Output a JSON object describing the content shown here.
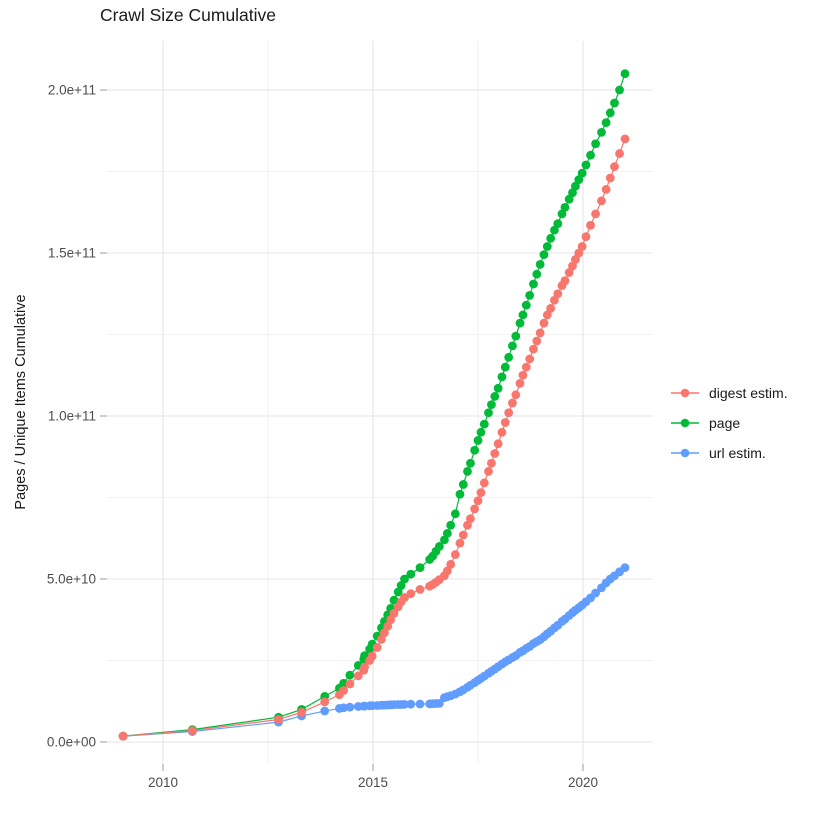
{
  "title": "Crawl Size Cumulative",
  "x_axis": {
    "tick_labels": [
      "2010",
      "2015",
      "2020"
    ],
    "tick_values": [
      2010,
      2015,
      2020
    ],
    "minor_values": [
      2012.5,
      2017.5
    ]
  },
  "y_axis": {
    "title": "Pages / Unique Items Cumulative",
    "tick_labels": [
      "0.0e+00",
      "5.0e+10",
      "1.0e+11",
      "1.5e+11",
      "2.0e+11"
    ],
    "tick_values_billions": [
      0,
      50,
      100,
      150,
      200
    ],
    "minor_values_billions": [
      25,
      75,
      125,
      175
    ]
  },
  "legend": {
    "items": [
      {
        "label": "digest estim.",
        "color": "#F8766D"
      },
      {
        "label": "page",
        "color": "#00BA38"
      },
      {
        "label": "url estim.",
        "color": "#619CFF"
      }
    ]
  },
  "style_colors": {
    "grid_major": "#e5e5e5",
    "grid_minor": "#f2f2f2",
    "axis_tick": "#9e9e9e",
    "axis_text": "#4d4d4d",
    "title_text": "#1a1a1a"
  },
  "chart_data": {
    "type": "scatter",
    "title": "Crawl Size Cumulative",
    "xlabel": "",
    "ylabel": "Pages / Unique Items Cumulative",
    "xlim": [
      2008.67,
      2021.67
    ],
    "ylim": [
      0,
      215000000000.0
    ],
    "grid": "on",
    "legend_position": "right",
    "value_unit": "billions of pages / unique items (1e9)",
    "x": [
      2009.05,
      2010.7,
      2012.75,
      2013.3,
      2013.85,
      2014.2,
      2014.3,
      2014.45,
      2014.65,
      2014.78,
      2014.8,
      2014.92,
      2014.98,
      2015.1,
      2015.2,
      2015.27,
      2015.35,
      2015.42,
      2015.5,
      2015.6,
      2015.67,
      2015.75,
      2015.9,
      2016.12,
      2016.35,
      2016.42,
      2016.5,
      2016.58,
      2016.7,
      2016.77,
      2016.85,
      2016.96,
      2017.07,
      2017.15,
      2017.25,
      2017.32,
      2017.42,
      2017.5,
      2017.57,
      2017.65,
      2017.75,
      2017.82,
      2017.9,
      2017.98,
      2018.07,
      2018.15,
      2018.23,
      2018.32,
      2018.4,
      2018.5,
      2018.57,
      2018.65,
      2018.73,
      2018.82,
      2018.9,
      2018.98,
      2019.07,
      2019.15,
      2019.23,
      2019.32,
      2019.4,
      2019.5,
      2019.57,
      2019.67,
      2019.75,
      2019.82,
      2019.9,
      2019.98,
      2020.07,
      2020.18,
      2020.3,
      2020.44,
      2020.55,
      2020.65,
      2020.75,
      2020.87,
      2021.0
    ],
    "series": [
      {
        "name": "url estim.",
        "color": "#619CFF",
        "values_billions": [
          1.8,
          3.2,
          6.1,
          8.0,
          9.5,
          10.3,
          10.5,
          10.7,
          10.9,
          11.0,
          11.0,
          11.1,
          11.15,
          11.2,
          11.25,
          11.3,
          11.35,
          11.4,
          11.45,
          11.5,
          11.5,
          11.55,
          11.6,
          11.65,
          11.7,
          11.75,
          11.8,
          11.85,
          13.6,
          13.9,
          14.2,
          14.7,
          15.4,
          16.0,
          16.8,
          17.4,
          18.2,
          18.9,
          19.5,
          20.2,
          21.1,
          21.7,
          22.4,
          23.1,
          23.9,
          24.6,
          25.2,
          25.9,
          26.5,
          27.5,
          28.0,
          28.7,
          29.3,
          30.2,
          30.8,
          31.4,
          32.3,
          33.2,
          34.0,
          35.0,
          35.8,
          37.0,
          37.7,
          38.8,
          39.7,
          40.4,
          41.2,
          42.0,
          43.0,
          44.2,
          45.7,
          47.3,
          48.8,
          50.0,
          51.0,
          52.2,
          53.5
        ]
      },
      {
        "name": "page",
        "color": "#00BA38",
        "values_billions": [
          1.8,
          3.8,
          7.6,
          10.0,
          14.0,
          16.5,
          18.0,
          20.5,
          23.5,
          25.5,
          26.5,
          28.5,
          30.0,
          32.5,
          35.0,
          37.0,
          39.0,
          41.0,
          43.5,
          46.0,
          48.0,
          50.0,
          51.5,
          53.5,
          56.0,
          57.0,
          58.5,
          60.0,
          62.0,
          64.0,
          66.5,
          70.0,
          76.0,
          79.0,
          83.0,
          85.5,
          89.5,
          92.5,
          95.0,
          97.5,
          101.0,
          103.5,
          106.0,
          108.5,
          112.0,
          115.0,
          118.0,
          121.5,
          124.5,
          128.5,
          131.0,
          134.0,
          137.0,
          140.5,
          143.5,
          146.5,
          149.5,
          152.0,
          154.5,
          157.0,
          159.0,
          162.0,
          164.0,
          166.5,
          168.5,
          170.5,
          172.5,
          174.5,
          177.0,
          180.0,
          183.5,
          187.0,
          190.0,
          193.0,
          196.0,
          200.0,
          205.0
        ]
      },
      {
        "name": "digest estim.",
        "color": "#F8766D",
        "values_billions": [
          1.8,
          3.5,
          6.9,
          9.1,
          12.3,
          14.5,
          15.8,
          17.8,
          20.3,
          22.0,
          23.0,
          25.0,
          26.3,
          29.0,
          31.5,
          33.5,
          35.5,
          37.5,
          39.5,
          41.5,
          43.0,
          44.3,
          45.5,
          46.8,
          47.8,
          48.3,
          49.0,
          49.8,
          51.0,
          52.5,
          54.5,
          57.5,
          61.0,
          63.5,
          66.5,
          68.5,
          71.5,
          74.0,
          76.5,
          79.5,
          83.0,
          85.5,
          88.5,
          91.5,
          95.0,
          98.0,
          101.0,
          104.0,
          106.5,
          110.0,
          112.5,
          115.0,
          117.5,
          120.5,
          123.0,
          125.5,
          128.5,
          131.0,
          133.0,
          135.5,
          137.5,
          140.0,
          141.5,
          144.0,
          146.0,
          148.0,
          150.0,
          152.0,
          155.0,
          158.5,
          162.0,
          166.0,
          169.5,
          173.0,
          176.5,
          180.5,
          185.0
        ]
      }
    ]
  }
}
